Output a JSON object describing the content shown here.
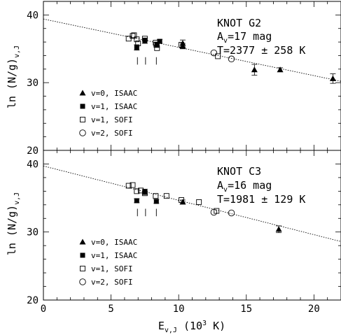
{
  "figure": {
    "xlabel_main": "E",
    "xlabel_sub": "v,J",
    "xlabel_unit_pre": " (10",
    "xlabel_unit_sup": "3",
    "xlabel_unit_post": " K)",
    "ylabel_main": "ln (N/g)",
    "ylabel_sub": "v,J"
  },
  "chart_data": [
    {
      "type": "scatter",
      "name": "top",
      "xlim": [
        0,
        22
      ],
      "ylim": [
        20,
        42
      ],
      "xticks": [
        0,
        5,
        10,
        15,
        20
      ],
      "yticks": [
        20,
        30,
        40
      ],
      "xtick_labels_shown": false,
      "grid": false,
      "annotation": {
        "title": "KNOT G2",
        "av_pre": "A",
        "av_sub": "v",
        "av_post": "=17 mag",
        "temp": "T=2377 ± 258 K"
      },
      "fit_line": {
        "x": [
          0,
          22
        ],
        "y": [
          39.4,
          30.2
        ]
      },
      "markers_x": [
        6.95,
        7.55,
        8.35
      ],
      "legend": [
        {
          "symbol": "triangle-filled",
          "label": "v=0, ISAAC"
        },
        {
          "symbol": "square-filled",
          "label": "v=1, ISAAC"
        },
        {
          "symbol": "square-open",
          "label": "v=1, SOFI"
        },
        {
          "symbol": "circle-open",
          "label": "v=2, SOFI"
        }
      ],
      "series": [
        {
          "symbol": "triangle-filled",
          "x": [
            10.3,
            10.3,
            15.6,
            17.5,
            21.4
          ],
          "y": [
            35.8,
            35.4,
            31.9,
            31.9,
            30.6
          ],
          "err": [
            0.5,
            0.4,
            0.8,
            0.3,
            0.7
          ]
        },
        {
          "symbol": "square-filled",
          "x": [
            6.9,
            7.5,
            8.4,
            8.6
          ],
          "y": [
            35.2,
            36.2,
            35.6,
            36.1
          ],
          "err": [
            0.4,
            0.4,
            0.4,
            0.3
          ]
        },
        {
          "symbol": "square-open",
          "x": [
            6.3,
            6.6,
            6.7,
            6.9,
            7.0,
            7.5,
            8.3,
            8.35,
            8.4,
            10.2,
            12.9
          ],
          "y": [
            36.5,
            36.9,
            37.0,
            36.4,
            35.8,
            36.5,
            35.9,
            35.6,
            35.1,
            35.6,
            33.9
          ],
          "err": [
            0,
            0,
            0,
            0,
            0,
            0,
            0,
            0,
            0,
            0,
            0
          ]
        },
        {
          "symbol": "circle-open",
          "x": [
            12.6,
            13.9
          ],
          "y": [
            34.4,
            33.5
          ],
          "err": [
            0,
            0
          ]
        }
      ]
    },
    {
      "type": "scatter",
      "name": "bottom",
      "xlim": [
        0,
        22
      ],
      "ylim": [
        20,
        42
      ],
      "xticks": [
        0,
        5,
        10,
        15,
        20
      ],
      "yticks": [
        20,
        30,
        40
      ],
      "xtick_labels_shown": true,
      "grid": false,
      "annotation": {
        "title": "KNOT C3",
        "av_pre": "A",
        "av_sub": "v",
        "av_post": "=16 mag",
        "temp": "T=1981 ± 129 K"
      },
      "fit_line": {
        "x": [
          0,
          22
        ],
        "y": [
          39.7,
          28.6
        ]
      },
      "markers_x": [
        6.95,
        7.55,
        8.35
      ],
      "legend": [
        {
          "symbol": "triangle-filled",
          "label": "v=0, ISAAC"
        },
        {
          "symbol": "square-filled",
          "label": "v=1, ISAAC"
        },
        {
          "symbol": "square-open",
          "label": "v=1, SOFI"
        },
        {
          "symbol": "circle-open",
          "label": "v=2, SOFI"
        }
      ],
      "series": [
        {
          "symbol": "triangle-filled",
          "x": [
            10.3,
            17.4
          ],
          "y": [
            34.4,
            30.4
          ],
          "err": [
            0.3,
            0.5
          ]
        },
        {
          "symbol": "square-filled",
          "x": [
            6.9,
            7.5,
            8.35
          ],
          "y": [
            34.6,
            35.9,
            34.5
          ],
          "err": [
            0.3,
            0.4,
            0.3
          ]
        },
        {
          "symbol": "square-open",
          "x": [
            6.3,
            6.6,
            6.9,
            7.2,
            7.5,
            8.3,
            9.1,
            10.2,
            11.5,
            12.8
          ],
          "y": [
            36.8,
            36.9,
            36.0,
            36.1,
            35.7,
            35.3,
            35.3,
            34.7,
            34.4,
            33.1
          ],
          "err": [
            0,
            0,
            0,
            0,
            0,
            0,
            0,
            0,
            0,
            0
          ]
        },
        {
          "symbol": "circle-open",
          "x": [
            12.6,
            13.9
          ],
          "y": [
            32.9,
            32.8
          ],
          "err": [
            0,
            0
          ]
        }
      ]
    }
  ]
}
